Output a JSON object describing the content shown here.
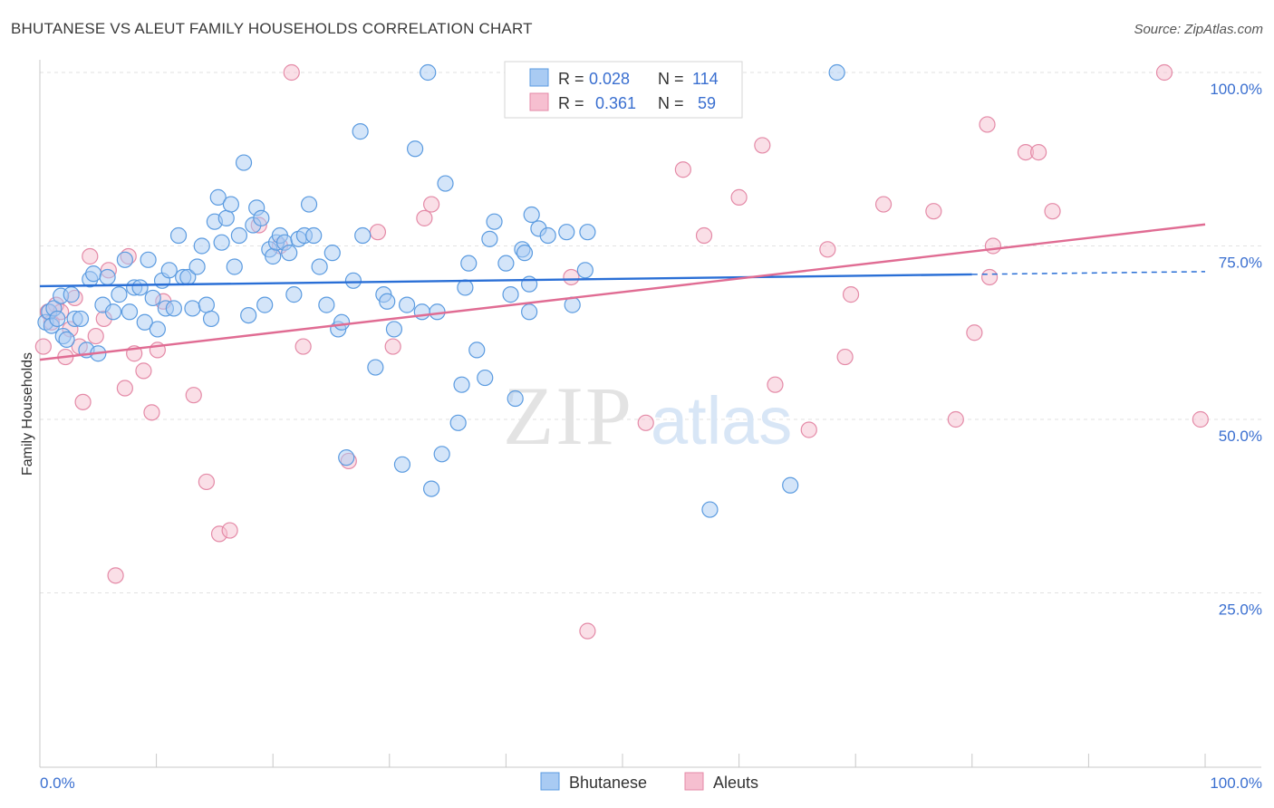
{
  "header": {
    "title": "BHUTANESE VS ALEUT FAMILY HOUSEHOLDS CORRELATION CHART",
    "source": "Source: ZipAtlas.com"
  },
  "watermark": {
    "zip": "ZIP",
    "atlas": "atlas"
  },
  "legend_top": {
    "rows": [
      {
        "r_label": "R = ",
        "r_value": "0.028",
        "n_label": "N = ",
        "n_value": "114"
      },
      {
        "r_label": "R = ",
        "r_value": "0.361",
        "n_label": "N = ",
        "n_value": "59"
      }
    ]
  },
  "legend_bottom": {
    "items": [
      "Bhutanese",
      "Aleuts"
    ]
  },
  "colors": {
    "blue": "#5b9be0",
    "blue_fill": "#a9cbf3",
    "blue_line": "#2a6fd6",
    "pink": "#e48aa7",
    "pink_fill": "#f6bfd0",
    "pink_line": "#e06c93",
    "accent_text": "#3a6fd0"
  },
  "chart_data": {
    "type": "scatter",
    "title": "BHUTANESE VS ALEUT FAMILY HOUSEHOLDS CORRELATION CHART",
    "xlabel": "",
    "ylabel": "Family Households",
    "xlim": [
      0,
      100
    ],
    "ylim": [
      0,
      100
    ],
    "x_tick_labels": [
      "0.0%",
      "100.0%"
    ],
    "y_tick_labels": [
      "25.0%",
      "50.0%",
      "75.0%",
      "100.0%"
    ],
    "y_ticks": [
      25,
      50,
      75,
      100
    ],
    "series": [
      {
        "name": "Bhutanese",
        "color": "blue",
        "r": 0.028,
        "n": 114,
        "trend": {
          "x0": 0,
          "y0": 69.2,
          "x1": 80,
          "y1": 70.9,
          "dash_to_x": 100,
          "dash_to_y": 71.3
        },
        "points": [
          [
            0.5,
            64
          ],
          [
            0.8,
            65.5
          ],
          [
            1,
            63.5
          ],
          [
            1.2,
            66
          ],
          [
            1.5,
            64.5
          ],
          [
            1.8,
            67.8
          ],
          [
            2,
            62
          ],
          [
            2.3,
            61.5
          ],
          [
            2.7,
            68
          ],
          [
            3,
            64.5
          ],
          [
            3.5,
            64.5
          ],
          [
            4,
            60
          ],
          [
            4.3,
            70.2
          ],
          [
            4.6,
            71
          ],
          [
            5,
            59.5
          ],
          [
            5.4,
            66.5
          ],
          [
            5.8,
            70.5
          ],
          [
            6.3,
            65.5
          ],
          [
            6.8,
            68
          ],
          [
            7.3,
            73
          ],
          [
            7.7,
            65.5
          ],
          [
            8.1,
            69
          ],
          [
            8.6,
            69
          ],
          [
            9,
            64
          ],
          [
            9.3,
            73
          ],
          [
            9.7,
            67.5
          ],
          [
            10.1,
            63
          ],
          [
            10.5,
            70
          ],
          [
            10.8,
            66
          ],
          [
            11.1,
            71.5
          ],
          [
            11.5,
            66
          ],
          [
            11.9,
            76.5
          ],
          [
            12.3,
            70.5
          ],
          [
            12.7,
            70.5
          ],
          [
            13.1,
            66
          ],
          [
            13.5,
            72
          ],
          [
            13.9,
            75
          ],
          [
            14.3,
            66.5
          ],
          [
            14.7,
            64.5
          ],
          [
            15,
            78.5
          ],
          [
            15.3,
            82
          ],
          [
            15.6,
            75.5
          ],
          [
            16,
            79
          ],
          [
            16.4,
            81
          ],
          [
            16.7,
            72
          ],
          [
            17.1,
            76.5
          ],
          [
            17.5,
            87
          ],
          [
            17.9,
            65
          ],
          [
            18.3,
            78
          ],
          [
            18.6,
            80.5
          ],
          [
            19,
            79
          ],
          [
            19.3,
            66.5
          ],
          [
            19.7,
            74.5
          ],
          [
            20,
            73.5
          ],
          [
            20.3,
            75.5
          ],
          [
            20.6,
            76.5
          ],
          [
            21,
            75.5
          ],
          [
            21.4,
            74
          ],
          [
            21.8,
            68
          ],
          [
            22.2,
            76
          ],
          [
            22.7,
            76.5
          ],
          [
            23.1,
            81
          ],
          [
            23.5,
            76.5
          ],
          [
            24,
            72
          ],
          [
            24.6,
            66.5
          ],
          [
            25.1,
            74
          ],
          [
            25.6,
            63
          ],
          [
            25.9,
            64
          ],
          [
            26.3,
            44.5
          ],
          [
            26.9,
            70
          ],
          [
            27.5,
            91.5
          ],
          [
            27.7,
            76.5
          ],
          [
            28.8,
            57.5
          ],
          [
            29.5,
            68
          ],
          [
            29.8,
            67
          ],
          [
            30.4,
            63
          ],
          [
            31.1,
            43.5
          ],
          [
            31.5,
            66.5
          ],
          [
            32.2,
            89
          ],
          [
            32.8,
            65.5
          ],
          [
            33.3,
            100
          ],
          [
            33.6,
            40
          ],
          [
            34.1,
            65.5
          ],
          [
            34.5,
            45
          ],
          [
            34.8,
            84
          ],
          [
            35.9,
            49.5
          ],
          [
            36.2,
            55
          ],
          [
            36.5,
            69
          ],
          [
            36.8,
            72.5
          ],
          [
            37.5,
            60
          ],
          [
            38.2,
            56
          ],
          [
            38.6,
            76
          ],
          [
            39,
            78.5
          ],
          [
            40,
            72.5
          ],
          [
            40.4,
            68
          ],
          [
            40.8,
            53
          ],
          [
            41.4,
            74.5
          ],
          [
            41.6,
            74
          ],
          [
            42,
            69.5
          ],
          [
            42.2,
            79.5
          ],
          [
            42.8,
            77.5
          ],
          [
            43.6,
            76.5
          ],
          [
            42,
            65.5
          ],
          [
            44,
            100
          ],
          [
            45.2,
            77
          ],
          [
            45.7,
            66.5
          ],
          [
            46.8,
            71.5
          ],
          [
            47,
            77
          ],
          [
            57.5,
            37
          ],
          [
            64.4,
            40.5
          ],
          [
            68.4,
            100
          ]
        ]
      },
      {
        "name": "Aleuts",
        "color": "pink",
        "r": 0.361,
        "n": 59,
        "trend": {
          "x0": 0,
          "y0": 58.6,
          "x1": 100,
          "y1": 78.1
        },
        "points": [
          [
            0.3,
            60.5
          ],
          [
            0.7,
            65.5
          ],
          [
            1,
            64
          ],
          [
            1.4,
            66.5
          ],
          [
            1.8,
            65.5
          ],
          [
            2.2,
            59
          ],
          [
            2.6,
            63
          ],
          [
            3,
            67.5
          ],
          [
            3.4,
            60.5
          ],
          [
            3.7,
            52.5
          ],
          [
            4.3,
            73.5
          ],
          [
            4.8,
            62
          ],
          [
            5.5,
            64.5
          ],
          [
            5.9,
            71.5
          ],
          [
            6.5,
            27.5
          ],
          [
            7.3,
            54.5
          ],
          [
            7.6,
            73.5
          ],
          [
            8.1,
            59.5
          ],
          [
            8.9,
            57
          ],
          [
            9.6,
            51
          ],
          [
            10.1,
            60
          ],
          [
            10.6,
            67
          ],
          [
            13.2,
            53.5
          ],
          [
            14.3,
            41
          ],
          [
            15.4,
            33.5
          ],
          [
            16.3,
            34
          ],
          [
            18.8,
            78
          ],
          [
            20.6,
            75
          ],
          [
            21.6,
            100
          ],
          [
            22.6,
            60.5
          ],
          [
            26.5,
            44
          ],
          [
            29,
            77
          ],
          [
            30.3,
            60.5
          ],
          [
            33,
            79
          ],
          [
            33.6,
            81
          ],
          [
            45.6,
            70.5
          ],
          [
            47,
            19.5
          ],
          [
            52,
            49.5
          ],
          [
            55.2,
            86
          ],
          [
            57,
            76.5
          ],
          [
            60,
            82
          ],
          [
            62,
            89.5
          ],
          [
            63.1,
            55
          ],
          [
            66,
            48.5
          ],
          [
            67.6,
            74.5
          ],
          [
            69.1,
            59
          ],
          [
            69.6,
            68
          ],
          [
            72.4,
            81
          ],
          [
            76.7,
            80
          ],
          [
            78.6,
            50
          ],
          [
            80.2,
            62.5
          ],
          [
            81.3,
            92.5
          ],
          [
            81.5,
            70.5
          ],
          [
            81.8,
            75
          ],
          [
            84.6,
            88.5
          ],
          [
            85.7,
            88.5
          ],
          [
            86.9,
            80
          ],
          [
            96.5,
            100
          ],
          [
            99.6,
            50
          ]
        ]
      }
    ]
  }
}
